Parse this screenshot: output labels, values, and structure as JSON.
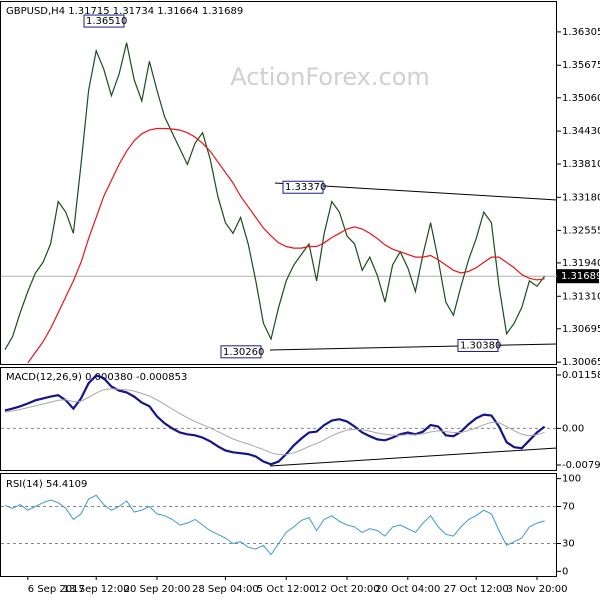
{
  "chart_data": [
    {
      "type": "line",
      "title": "GBPUSD,H4  1.31715 1.31734 1.31664 1.31689",
      "watermark": "ActionForex.com",
      "ylim": [
        1.3003,
        1.3687
      ],
      "yticks": [
        1.36305,
        1.35675,
        {
          "value": 1.3506,
          "label": "1.35060"
        },
        {
          "value": 1.3443,
          "label": "1.34430"
        },
        {
          "value": 1.3381,
          "label": "1.33810"
        },
        {
          "value": 1.3318,
          "label": "1.33180"
        },
        1.32555,
        {
          "value": 1.3194,
          "label": "1.31940"
        },
        {
          "value": 1.3131,
          "label": "1.31310"
        },
        1.30695,
        1.30065
      ],
      "last_price": 1.31689,
      "annotations": [
        {
          "value": 1.3651,
          "label": "1.36510"
        },
        {
          "value": 1.3337,
          "label": "1.33370"
        },
        {
          "value": 1.3026,
          "label": "1.30260"
        },
        {
          "value": 1.3038,
          "label": "1.30380"
        }
      ],
      "series": [
        {
          "color": "#1b4d1b",
          "values": [
            1.303,
            1.3055,
            1.31,
            1.314,
            1.3175,
            1.3195,
            1.323,
            1.331,
            1.329,
            1.325,
            1.338,
            1.352,
            1.3595,
            1.356,
            1.351,
            1.355,
            1.361,
            1.354,
            1.35,
            1.3575,
            1.352,
            1.347,
            1.344,
            1.341,
            1.338,
            1.342,
            1.344,
            1.339,
            1.332,
            1.327,
            1.325,
            1.328,
            1.323,
            1.316,
            1.308,
            1.305,
            1.311,
            1.316,
            1.319,
            1.321,
            1.323,
            1.316,
            1.325,
            1.331,
            1.329,
            1.3245,
            1.323,
            1.318,
            1.3205,
            1.317,
            1.312,
            1.319,
            1.3215,
            1.3185,
            1.314,
            1.321,
            1.327,
            1.32,
            1.312,
            1.3095,
            1.315,
            1.32,
            1.324,
            1.329,
            1.327,
            1.315,
            1.306,
            1.308,
            1.311,
            1.316,
            1.315,
            1.31689
          ]
        },
        {
          "color": "#e8141a",
          "values": [
            null,
            null,
            null,
            1.3005,
            1.3025,
            1.3045,
            1.307,
            1.31,
            1.313,
            1.316,
            1.3195,
            1.324,
            1.328,
            1.332,
            1.335,
            1.338,
            1.3405,
            1.3425,
            1.3438,
            1.3445,
            1.3448,
            1.3448,
            1.3447,
            1.3445,
            1.344,
            1.3432,
            1.342,
            1.3405,
            1.3385,
            1.3365,
            1.3345,
            1.332,
            1.33,
            1.328,
            1.326,
            1.3245,
            1.3232,
            1.3225,
            1.3222,
            1.3222,
            1.3225,
            1.3225,
            1.3232,
            1.3242,
            1.325,
            1.3258,
            1.3262,
            1.3258,
            1.325,
            1.324,
            1.3228,
            1.322,
            1.3215,
            1.321,
            1.3205,
            1.3205,
            1.3208,
            1.32,
            1.319,
            1.318,
            1.3175,
            1.3178,
            1.3185,
            1.3195,
            1.3205,
            1.3205,
            1.3195,
            1.3185,
            1.3172,
            1.3165,
            1.3162,
            1.3164
          ]
        }
      ]
    },
    {
      "type": "line",
      "title": "MACD(12,26,9) 0.000380 -0.000853",
      "ylim": [
        -0.00926,
        0.01311
      ],
      "yticks": [
        0.011588,
        {
          "value": 0,
          "label": "0.00"
        },
        -0.007961
      ],
      "levels": [
        0
      ],
      "series": [
        {
          "color": "#14148c",
          "width": 2.2,
          "values": [
            0.0039,
            0.0043,
            0.0048,
            0.0054,
            0.0061,
            0.0065,
            0.0069,
            0.0072,
            0.0061,
            0.0043,
            0.0065,
            0.0098,
            0.0115,
            0.0109,
            0.0091,
            0.0082,
            0.0078,
            0.0069,
            0.0056,
            0.0048,
            0.0026,
            0.0011,
            0.0,
            -0.0009,
            -0.0013,
            -0.0015,
            -0.002,
            -0.0028,
            -0.0039,
            -0.0048,
            -0.0052,
            -0.0054,
            -0.0056,
            -0.0061,
            -0.0072,
            -0.0078,
            -0.0072,
            -0.0056,
            -0.0037,
            -0.0022,
            -0.0009,
            -0.0007,
            0.0007,
            0.0017,
            0.002,
            0.0015,
            0.0004,
            -0.0009,
            -0.0017,
            -0.0024,
            -0.0026,
            -0.002,
            -0.0013,
            -0.0009,
            -0.0013,
            -0.0007,
            0.0007,
            0.0004,
            -0.0015,
            -0.0017,
            -0.0007,
            0.0009,
            0.0022,
            0.003,
            0.0028,
            0.0004,
            -0.003,
            -0.0041,
            -0.0043,
            -0.0026,
            -0.0009,
            0.00038
          ]
        },
        {
          "color": "#a8a8a8",
          "width": 1,
          "values": [
            0.0035,
            0.0038,
            0.0041,
            0.0045,
            0.0049,
            0.0053,
            0.0057,
            0.0061,
            0.0062,
            0.0058,
            0.0059,
            0.0067,
            0.0077,
            0.0084,
            0.0086,
            0.0085,
            0.0084,
            0.0081,
            0.0076,
            0.007,
            0.0062,
            0.0052,
            0.0042,
            0.0032,
            0.0023,
            0.0015,
            0.0008,
            0.0001,
            -0.0007,
            -0.0015,
            -0.0023,
            -0.0029,
            -0.0034,
            -0.004,
            -0.0046,
            -0.0053,
            -0.0057,
            -0.0057,
            -0.0053,
            -0.0047,
            -0.0039,
            -0.0033,
            -0.0025,
            -0.0016,
            -0.0009,
            -0.0004,
            -0.0002,
            -0.0003,
            -0.0006,
            -0.001,
            -0.0013,
            -0.0015,
            -0.0015,
            -0.0014,
            -0.0014,
            -0.0012,
            -0.0008,
            -0.0005,
            -0.0007,
            -0.0009,
            -0.0009,
            -0.0005,
            0.0001,
            0.0008,
            0.0013,
            0.0012,
            0.0004,
            -0.0005,
            -0.0013,
            -0.0016,
            -0.0014,
            -0.000853
          ]
        }
      ]
    },
    {
      "type": "line",
      "title": "RSI(14) 54.4109",
      "ylim": [
        -5,
        105
      ],
      "yticks": [
        100,
        70,
        30,
        0
      ],
      "levels": [
        70,
        30
      ],
      "x": [
        null,
        null,
        null,
        "6 Sep 2017",
        null,
        null,
        null,
        null,
        null,
        null,
        null,
        null,
        "13 Sep 12:00",
        null,
        null,
        null,
        null,
        null,
        null,
        null,
        "20 Sep 20:00",
        null,
        null,
        null,
        null,
        null,
        null,
        null,
        null,
        "28 Sep 04:00",
        null,
        null,
        null,
        null,
        null,
        null,
        null,
        "5 Oct 12:00",
        null,
        null,
        null,
        null,
        null,
        null,
        null,
        "12 Oct 20:00",
        null,
        null,
        null,
        null,
        null,
        null,
        null,
        "20 Oct 04:00",
        null,
        null,
        null,
        null,
        null,
        null,
        null,
        null,
        "27 Oct 12:00",
        null,
        null,
        null,
        null,
        null,
        null,
        null,
        "3 Nov 20:00",
        null
      ],
      "series": [
        {
          "color": "#3a9bd5",
          "width": 1,
          "values": [
            71,
            68,
            72,
            66,
            70,
            74,
            77,
            74,
            68,
            56,
            62,
            78,
            82,
            72,
            66,
            70,
            76,
            64,
            66,
            70,
            62,
            60,
            56,
            50,
            52,
            56,
            50,
            44,
            40,
            36,
            30,
            32,
            26,
            24,
            28,
            18,
            30,
            42,
            48,
            55,
            58,
            44,
            56,
            60,
            54,
            50,
            48,
            42,
            46,
            44,
            38,
            48,
            50,
            46,
            42,
            52,
            60,
            48,
            40,
            38,
            48,
            56,
            60,
            66,
            62,
            44,
            28,
            32,
            36,
            48,
            52,
            54.4109
          ]
        }
      ]
    }
  ]
}
